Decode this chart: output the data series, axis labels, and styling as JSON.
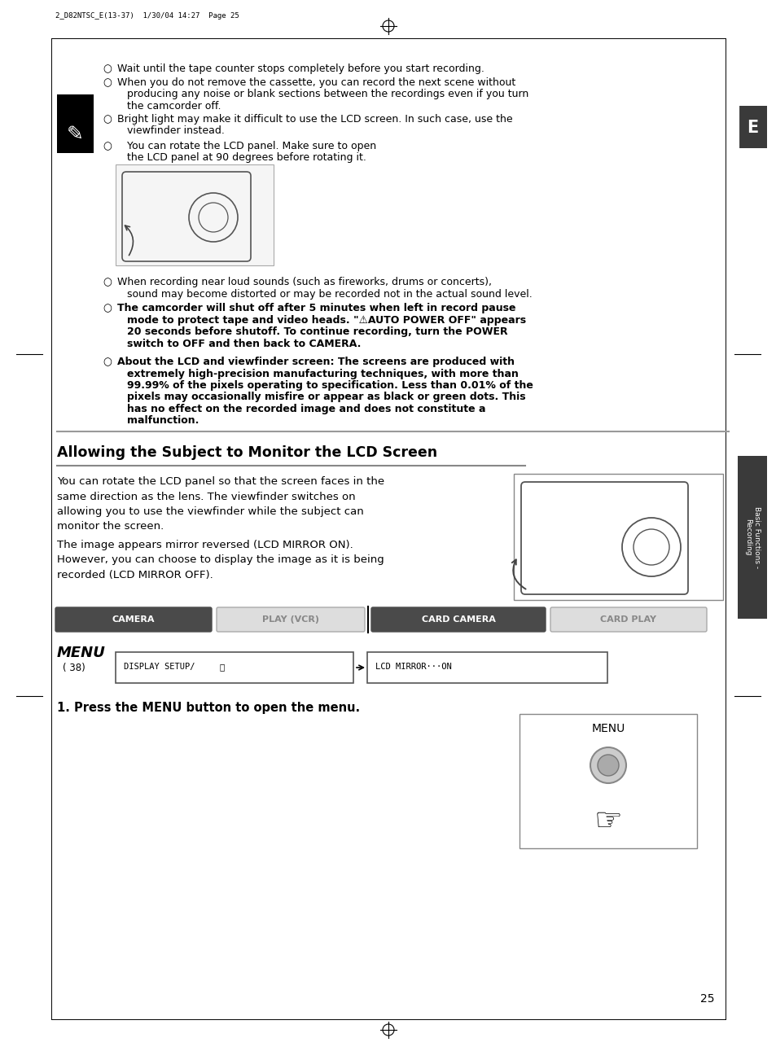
{
  "bg_color": "#ffffff",
  "page_num": "25",
  "header_text": "2_D82NTSC_E(13-37)  1/30/04 14:27  Page 25",
  "tab_letter": "E",
  "sidebar_label": "Basic Functions -\nRecording",
  "section_title": "Allowing the Subject to Monitor the LCD Screen",
  "mode_buttons": [
    "CAMERA",
    "PLAY (VCR)",
    "CARD CAMERA",
    "CARD PLAY"
  ],
  "mode_active": [
    true,
    false,
    true,
    false
  ],
  "menu_ref": "( 38)",
  "menu_item1": "DISPLAY SETUP/",
  "menu_item2": "LCD MIRROR···ON",
  "step1_text": "1. Press the MENU button to open the menu.",
  "bullet1": "Wait until the tape counter stops completely before you start recording.",
  "bullet2a": "When you do not remove the cassette, you can record the next scene without",
  "bullet2b": "producing any noise or blank sections between the recordings even if you turn",
  "bullet2c": "the camcorder off.",
  "bullet3a": "Bright light may make it difficult to use the LCD screen. In such case, use the",
  "bullet3b": "viewfinder instead.",
  "bullet4a": "You can rotate the LCD panel. Make sure to open",
  "bullet4b": "the LCD panel at 90 degrees before rotating it.",
  "bullet5a": "When recording near loud sounds (such as fireworks, drums or concerts),",
  "bullet5b": "sound may become distorted or may be recorded not in the actual sound level.",
  "bullet6a": "The camcorder will shut off after 5 minutes when left in record pause",
  "bullet6b": "mode to protect tape and video heads. \"⚠AUTO POWER OFF\" appears",
  "bullet6c": "20 seconds before shutoff. To continue recording, turn the POWER",
  "bullet6d": "switch to OFF and then back to CAMERA.",
  "bullet7a": "About the LCD and viewfinder screen: The screens are produced with",
  "bullet7b": "extremely high-precision manufacturing techniques, with more than",
  "bullet7c": "99.99% of the pixels operating to specification. Less than 0.01% of the",
  "bullet7d": "pixels may occasionally misfire or appear as black or green dots. This",
  "bullet7e": "has no effect on the recorded image and does not constitute a",
  "bullet7f": "malfunction.",
  "body1a": "You can rotate the LCD panel so that the screen faces in the",
  "body1b": "same direction as the lens. The viewfinder switches on",
  "body1c": "allowing you to use the viewfinder while the subject can",
  "body1d": "monitor the screen.",
  "body2a": "The image appears mirror reversed (LCD MIRROR ON).",
  "body2b": "However, you can choose to display the image as it is being",
  "body2c": "recorded (LCD MIRROR OFF)."
}
